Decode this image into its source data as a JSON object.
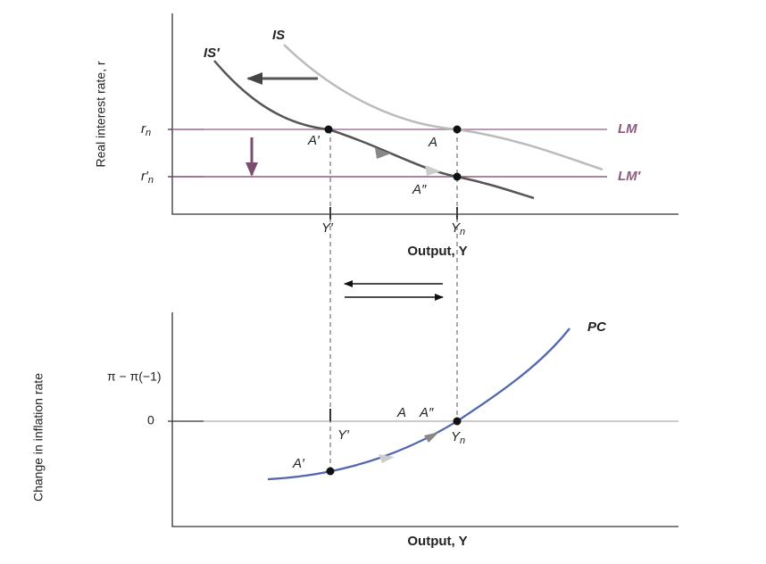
{
  "top_panel": {
    "y_axis_title": "Real interest rate, r",
    "x_axis_title": "Output, Y",
    "curves": {
      "is": "IS",
      "is_prime": "IS′",
      "lm": "LM",
      "lm_prime": "LM′"
    },
    "points": [
      "A′",
      "A",
      "A″"
    ],
    "y_labels": [
      {
        "main": "r",
        "sub": "n"
      },
      {
        "main": "r′",
        "sub": "n"
      }
    ],
    "x_labels": [
      "Y′",
      {
        "main": "Y",
        "sub": "n"
      }
    ]
  },
  "bottom_panel": {
    "y_axis_title": "Change in inflation rate",
    "x_axis_title": "Output, Y",
    "curves": {
      "pc": "PC"
    },
    "y_labels": [
      "π − π(−1)",
      "0"
    ],
    "points": [
      "A",
      "A″",
      "A′"
    ],
    "x_labels": [
      "Y′",
      {
        "main": "Y",
        "sub": "n"
      }
    ]
  }
}
